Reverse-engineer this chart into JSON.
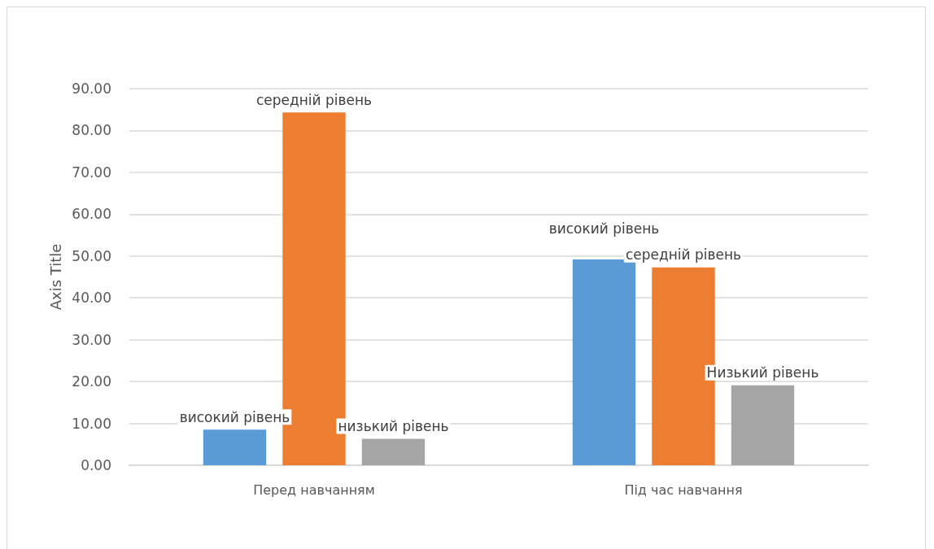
{
  "chart_data": {
    "type": "bar",
    "ylabel": "Axis Title",
    "categories": [
      "Перед навчанням",
      "Під час навчання"
    ],
    "series": [
      {
        "color": "#5b9bd5",
        "values": [
          8.5,
          49.2
        ],
        "value_labels": [
          "високий рівень",
          "високий рівень"
        ]
      },
      {
        "color": "#ed7d31",
        "values": [
          84.3,
          47.3
        ],
        "value_labels": [
          "середній рівень",
          "середній рівень"
        ]
      },
      {
        "color": "#a5a5a5",
        "values": [
          6.3,
          19.1
        ],
        "value_labels": [
          "низький рівень",
          "Низький рівень"
        ]
      }
    ],
    "ylim": [
      0,
      90
    ],
    "yticks": [
      {
        "value": 0,
        "label": "0.00"
      },
      {
        "value": 10,
        "label": "10.00"
      },
      {
        "value": 20,
        "label": "20.00"
      },
      {
        "value": 30,
        "label": "30.00"
      },
      {
        "value": 40,
        "label": "40.00"
      },
      {
        "value": 50,
        "label": "50.00"
      },
      {
        "value": 60,
        "label": "60.00"
      },
      {
        "value": 70,
        "label": "70.00"
      },
      {
        "value": 80,
        "label": "80.00"
      },
      {
        "value": 90,
        "label": "90.00"
      }
    ],
    "grid": "y"
  }
}
